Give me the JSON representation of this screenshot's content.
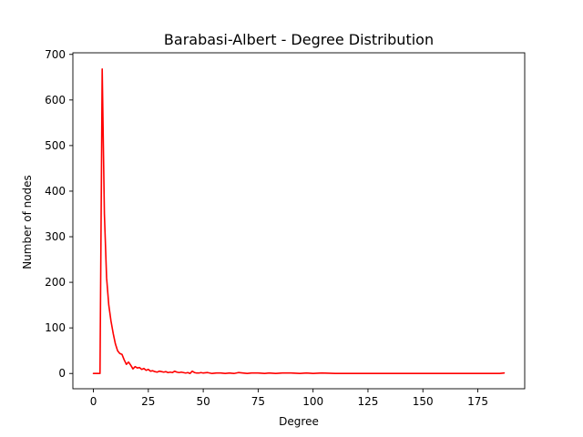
{
  "chart_data": {
    "type": "line",
    "title": "Barabasi-Albert - Degree Distribution",
    "xlabel": "Degree",
    "ylabel": "Number of nodes",
    "xlim": [
      -9.35,
      196.35
    ],
    "ylim": [
      -33.5,
      703.5
    ],
    "xticks": [
      0,
      25,
      50,
      75,
      100,
      125,
      150,
      175
    ],
    "yticks": [
      0,
      100,
      200,
      300,
      400,
      500,
      600,
      700
    ],
    "grid": false,
    "series": [
      {
        "color": "#ff0000",
        "x": [
          0,
          1,
          2,
          3,
          4,
          5,
          6,
          7,
          8,
          9,
          10,
          11,
          12,
          13,
          14,
          15,
          16,
          17,
          18,
          19,
          20,
          21,
          22,
          23,
          24,
          25,
          26,
          27,
          28,
          29,
          30,
          31,
          32,
          33,
          34,
          35,
          36,
          37,
          38,
          39,
          40,
          41,
          42,
          43,
          44,
          45,
          46,
          47,
          48,
          49,
          50,
          52,
          54,
          56,
          58,
          60,
          62,
          64,
          66,
          68,
          70,
          72,
          75,
          78,
          80,
          83,
          86,
          90,
          94,
          97,
          100,
          104,
          110,
          120,
          130,
          140,
          150,
          160,
          170,
          180,
          185,
          187
        ],
        "values": [
          0,
          0,
          0,
          0,
          668,
          350,
          210,
          150,
          115,
          88,
          65,
          50,
          44,
          42,
          30,
          20,
          25,
          18,
          10,
          15,
          12,
          13,
          9,
          11,
          7,
          9,
          5,
          6,
          4,
          3,
          5,
          4,
          3,
          4,
          2,
          3,
          2,
          5,
          3,
          2,
          3,
          2,
          1,
          2,
          0,
          5,
          2,
          1,
          1,
          2,
          1,
          2,
          0,
          1,
          1,
          0,
          1,
          0,
          2,
          1,
          0,
          1,
          1,
          0,
          1,
          0,
          1,
          1,
          0,
          1,
          0,
          1,
          0,
          0,
          0,
          0,
          0,
          0,
          0,
          0,
          0,
          1
        ]
      }
    ]
  }
}
